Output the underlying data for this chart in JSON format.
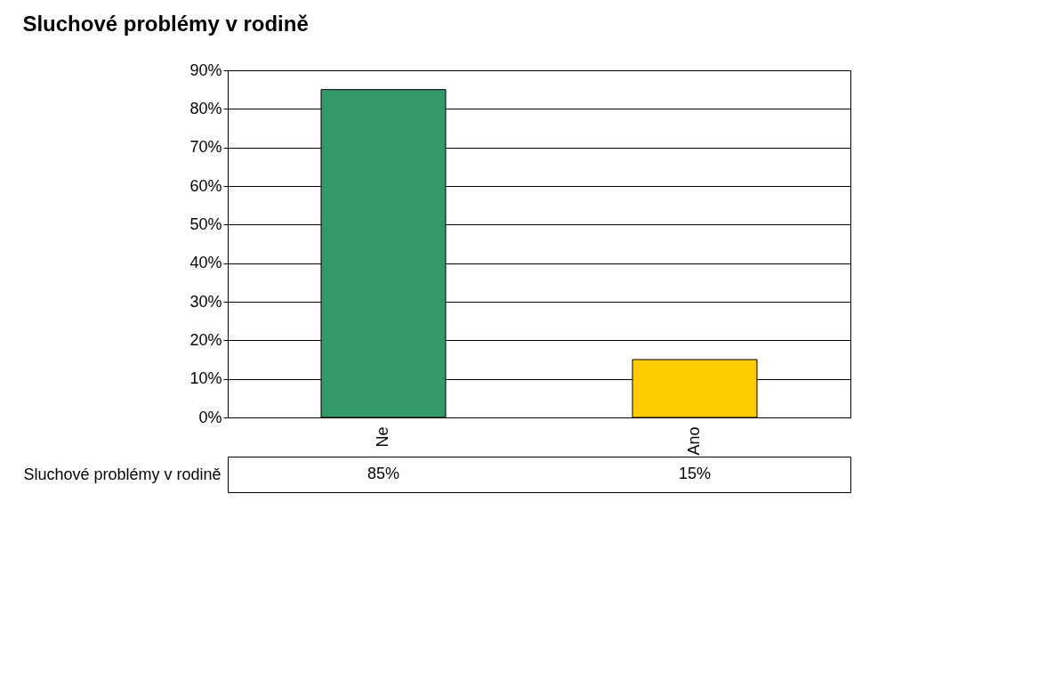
{
  "chart_data": {
    "type": "bar",
    "title": "Sluchové problémy v rodině",
    "categories": [
      "Ne",
      "Ano"
    ],
    "series": [
      {
        "name": "Sluchové problémy v rodině",
        "colors": [
          "#339966",
          "#ffcc00"
        ],
        "values": [
          85,
          15
        ],
        "value_labels": [
          "85%",
          "15%"
        ]
      }
    ],
    "ylim": [
      0,
      90
    ],
    "yticks": [
      {
        "value": 0,
        "label": "0%"
      },
      {
        "value": 10,
        "label": "10%"
      },
      {
        "value": 20,
        "label": "20%"
      },
      {
        "value": 30,
        "label": "30%"
      },
      {
        "value": 40,
        "label": "40%"
      },
      {
        "value": 50,
        "label": "50%"
      },
      {
        "value": 60,
        "label": "60%"
      },
      {
        "value": 70,
        "label": "70%"
      },
      {
        "value": 80,
        "label": "80%"
      },
      {
        "value": 90,
        "label": "90%"
      }
    ],
    "grid": "y",
    "legend": false
  }
}
